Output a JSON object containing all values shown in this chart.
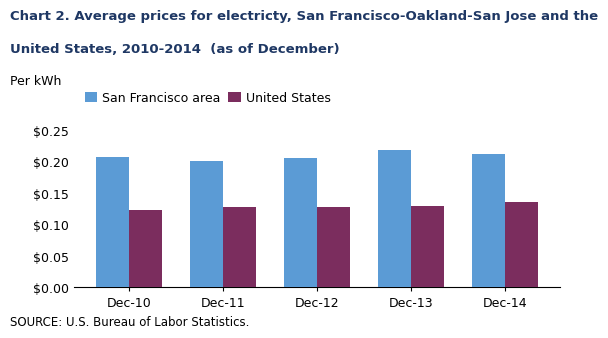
{
  "title_line1": "Chart 2. Average prices for electricty, San Francisco-Oakland-San Jose and the",
  "title_line2": "United States, 2010-2014  (as of December)",
  "ylabel": "Per kWh",
  "source": "SOURCE: U.S. Bureau of Labor Statistics.",
  "categories": [
    "Dec-10",
    "Dec-11",
    "Dec-12",
    "Dec-13",
    "Dec-14"
  ],
  "sf_values": [
    0.208,
    0.201,
    0.206,
    0.218,
    0.212
  ],
  "us_values": [
    0.123,
    0.127,
    0.127,
    0.13,
    0.135
  ],
  "sf_color": "#5B9BD5",
  "us_color": "#7B2D5E",
  "sf_label": "San Francisco area",
  "us_label": "United States",
  "ylim": [
    0,
    0.25
  ],
  "yticks": [
    0.0,
    0.05,
    0.1,
    0.15,
    0.2,
    0.25
  ],
  "background_color": "#ffffff",
  "title_fontsize": 9.5,
  "axis_fontsize": 9,
  "legend_fontsize": 9,
  "source_fontsize": 8.5,
  "title_color": "#1F3864"
}
